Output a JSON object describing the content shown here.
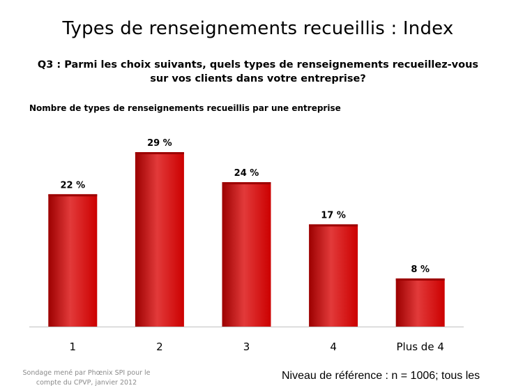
{
  "slide": {
    "title": "Types de renseignements recueillis : Index",
    "question": "Q3 : Parmi les choix suivants, quels types de renseignements recueillez-vous sur vos clients dans votre entreprise?",
    "subtitle": "Nombre de types de renseignements recueillis par une entreprise",
    "source": "Sondage mené par Phœnix SPI pour le compte du CPVP, janvier 2012",
    "reference": "Niveau de référence : n = 1006; tous les"
  },
  "colors": {
    "bar": "#cc0000",
    "bar_dark": "#9c0000",
    "bar_light": "#e23a3a",
    "axis": "#c0c0c0"
  },
  "chart_data": {
    "type": "bar",
    "categories": [
      "1",
      "2",
      "3",
      "4",
      "Plus de 4"
    ],
    "values": [
      22,
      29,
      24,
      17,
      8
    ],
    "data_labels": [
      "22 %",
      "29 %",
      "24 %",
      "17 %",
      "8 %"
    ],
    "title": "Nombre de types de renseignements recueillis par une entreprise",
    "xlabel": "",
    "ylabel": "",
    "ylim": [
      0,
      29
    ],
    "grid": false,
    "legend": "none"
  }
}
